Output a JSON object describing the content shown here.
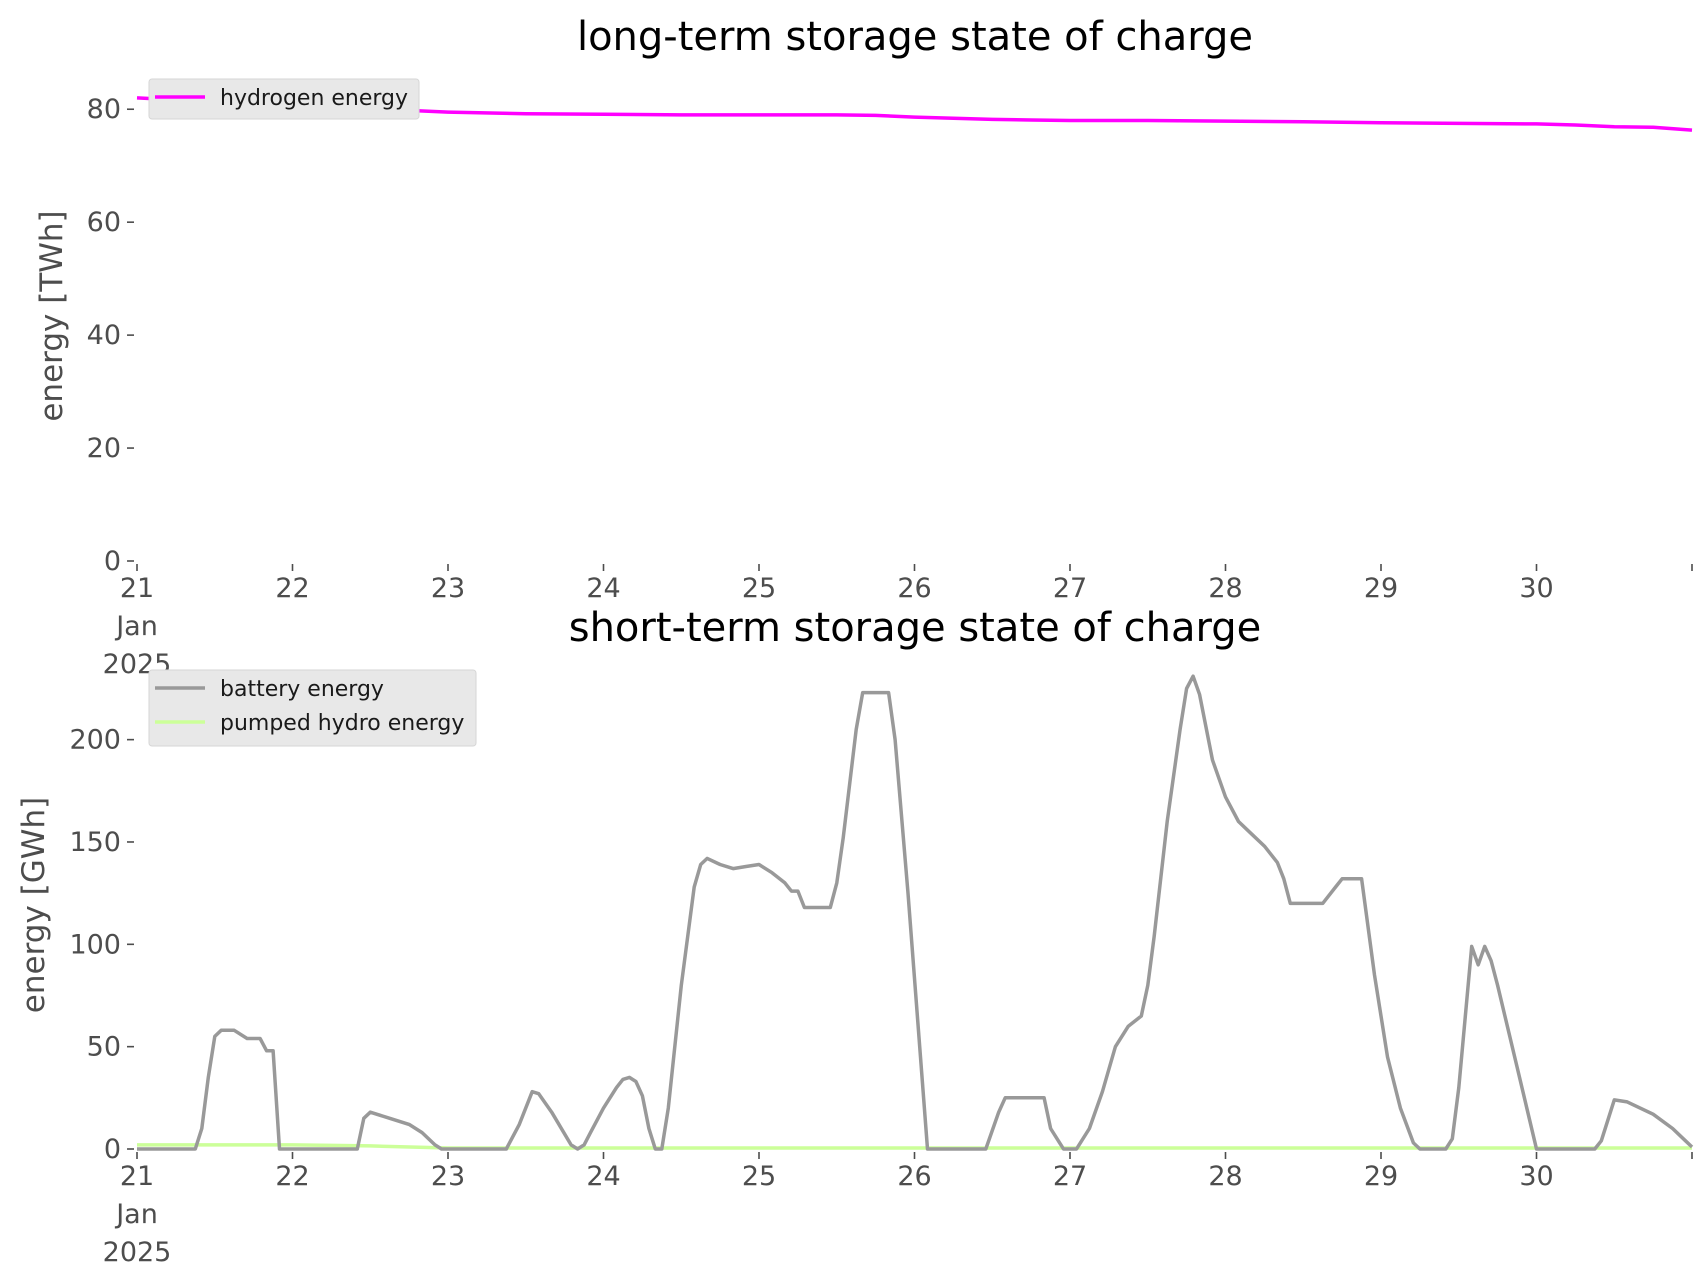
{
  "chart_data": [
    {
      "type": "line",
      "title": "long-term storage state of charge",
      "xlabel": "",
      "ylabel": "energy [TWh]",
      "x_tick_labels": [
        "21\nJan\n2025",
        "22",
        "23",
        "24",
        "25",
        "26",
        "27",
        "28",
        "29",
        "30"
      ],
      "x_range": [
        "2025-01-21 00:00",
        "2025-01-31 00:00"
      ],
      "ylim": [
        0,
        85
      ],
      "y_ticks": [
        0,
        20,
        40,
        60,
        80
      ],
      "grid": false,
      "legend_position": "upper-left",
      "series": [
        {
          "name": "hydrogen energy",
          "color": "#ff00ff",
          "points": [
            [
              "2025-01-21 00:00",
              82.0
            ],
            [
              "2025-01-21 12:00",
              81.3
            ],
            [
              "2025-01-22 00:00",
              80.7
            ],
            [
              "2025-01-22 12:00",
              80.1
            ],
            [
              "2025-01-23 00:00",
              79.5
            ],
            [
              "2025-01-23 12:00",
              79.2
            ],
            [
              "2025-01-24 00:00",
              79.1
            ],
            [
              "2025-01-24 12:00",
              79.0
            ],
            [
              "2025-01-25 00:00",
              79.0
            ],
            [
              "2025-01-25 12:00",
              79.0
            ],
            [
              "2025-01-25 18:00",
              78.9
            ],
            [
              "2025-01-26 00:00",
              78.6
            ],
            [
              "2025-01-26 12:00",
              78.2
            ],
            [
              "2025-01-26 18:00",
              78.1
            ],
            [
              "2025-01-27 00:00",
              78.0
            ],
            [
              "2025-01-27 12:00",
              78.0
            ],
            [
              "2025-01-28 00:00",
              77.9
            ],
            [
              "2025-01-28 12:00",
              77.8
            ],
            [
              "2025-01-29 00:00",
              77.6
            ],
            [
              "2025-01-29 12:00",
              77.5
            ],
            [
              "2025-01-30 00:00",
              77.4
            ],
            [
              "2025-01-30 06:00",
              77.2
            ],
            [
              "2025-01-30 12:00",
              76.9
            ],
            [
              "2025-01-30 18:00",
              76.8
            ],
            [
              "2025-01-31 00:00",
              76.3
            ]
          ]
        }
      ]
    },
    {
      "type": "line",
      "title": "short-term storage state of charge",
      "xlabel": "",
      "ylabel": "energy [GWh]",
      "x_tick_labels": [
        "21\nJan\n2025",
        "22",
        "23",
        "24",
        "25",
        "26",
        "27",
        "28",
        "29",
        "30"
      ],
      "x_range": [
        "2025-01-21 00:00",
        "2025-01-31 00:00"
      ],
      "ylim": [
        0,
        235
      ],
      "y_ticks": [
        0,
        50,
        100,
        150,
        200
      ],
      "grid": false,
      "legend_position": "upper-left",
      "series": [
        {
          "name": "battery energy",
          "color": "#999999",
          "points": [
            [
              "2025-01-21 00:00",
              0
            ],
            [
              "2025-01-21 09:00",
              0
            ],
            [
              "2025-01-21 10:00",
              10
            ],
            [
              "2025-01-21 11:00",
              35
            ],
            [
              "2025-01-21 12:00",
              55
            ],
            [
              "2025-01-21 13:00",
              58
            ],
            [
              "2025-01-21 15:00",
              58
            ],
            [
              "2025-01-21 17:00",
              54
            ],
            [
              "2025-01-21 19:00",
              54
            ],
            [
              "2025-01-21 20:00",
              48
            ],
            [
              "2025-01-21 21:00",
              48
            ],
            [
              "2025-01-21 22:00",
              0
            ],
            [
              "2025-01-22 10:00",
              0
            ],
            [
              "2025-01-22 11:00",
              15
            ],
            [
              "2025-01-22 12:00",
              18
            ],
            [
              "2025-01-22 15:00",
              15
            ],
            [
              "2025-01-22 18:00",
              12
            ],
            [
              "2025-01-22 20:00",
              8
            ],
            [
              "2025-01-22 22:00",
              2
            ],
            [
              "2025-01-22 23:00",
              0
            ],
            [
              "2025-01-23 09:00",
              0
            ],
            [
              "2025-01-23 11:00",
              12
            ],
            [
              "2025-01-23 13:00",
              28
            ],
            [
              "2025-01-23 14:00",
              27
            ],
            [
              "2025-01-23 16:00",
              18
            ],
            [
              "2025-01-23 19:00",
              2
            ],
            [
              "2025-01-23 20:00",
              0
            ],
            [
              "2025-01-23 21:00",
              2
            ],
            [
              "2025-01-23 22:00",
              8
            ],
            [
              "2025-01-24 00:00",
              20
            ],
            [
              "2025-01-24 02:00",
              30
            ],
            [
              "2025-01-24 03:00",
              34
            ],
            [
              "2025-01-24 04:00",
              35
            ],
            [
              "2025-01-24 05:00",
              33
            ],
            [
              "2025-01-24 06:00",
              26
            ],
            [
              "2025-01-24 07:00",
              10
            ],
            [
              "2025-01-24 08:00",
              0
            ],
            [
              "2025-01-24 09:00",
              0
            ],
            [
              "2025-01-24 10:00",
              20
            ],
            [
              "2025-01-24 12:00",
              80
            ],
            [
              "2025-01-24 14:00",
              128
            ],
            [
              "2025-01-24 15:00",
              139
            ],
            [
              "2025-01-24 16:00",
              142
            ],
            [
              "2025-01-24 18:00",
              139
            ],
            [
              "2025-01-24 20:00",
              137
            ],
            [
              "2025-01-24 22:00",
              138
            ],
            [
              "2025-01-25 00:00",
              139
            ],
            [
              "2025-01-25 02:00",
              135
            ],
            [
              "2025-01-25 04:00",
              130
            ],
            [
              "2025-01-25 05:00",
              126
            ],
            [
              "2025-01-25 06:00",
              126
            ],
            [
              "2025-01-25 07:00",
              118
            ],
            [
              "2025-01-25 11:00",
              118
            ],
            [
              "2025-01-25 12:00",
              130
            ],
            [
              "2025-01-25 13:00",
              152
            ],
            [
              "2025-01-25 15:00",
              205
            ],
            [
              "2025-01-25 16:00",
              223
            ],
            [
              "2025-01-25 18:00",
              223
            ],
            [
              "2025-01-25 20:00",
              223
            ],
            [
              "2025-01-25 21:00",
              200
            ],
            [
              "2025-01-25 23:00",
              125
            ],
            [
              "2025-01-26 02:00",
              0
            ],
            [
              "2025-01-26 11:00",
              0
            ],
            [
              "2025-01-26 13:00",
              18
            ],
            [
              "2025-01-26 14:00",
              25
            ],
            [
              "2025-01-26 20:00",
              25
            ],
            [
              "2025-01-26 21:00",
              10
            ],
            [
              "2025-01-26 23:00",
              0
            ],
            [
              "2025-01-27 01:00",
              0
            ],
            [
              "2025-01-27 03:00",
              10
            ],
            [
              "2025-01-27 05:00",
              28
            ],
            [
              "2025-01-27 07:00",
              50
            ],
            [
              "2025-01-27 09:00",
              60
            ],
            [
              "2025-01-27 11:00",
              65
            ],
            [
              "2025-01-27 12:00",
              80
            ],
            [
              "2025-01-27 13:00",
              104
            ],
            [
              "2025-01-27 15:00",
              160
            ],
            [
              "2025-01-27 17:00",
              205
            ],
            [
              "2025-01-27 18:00",
              225
            ],
            [
              "2025-01-27 19:00",
              231
            ],
            [
              "2025-01-27 20:00",
              222
            ],
            [
              "2025-01-27 22:00",
              190
            ],
            [
              "2025-01-28 00:00",
              172
            ],
            [
              "2025-01-28 02:00",
              160
            ],
            [
              "2025-01-28 04:00",
              154
            ],
            [
              "2025-01-28 06:00",
              148
            ],
            [
              "2025-01-28 08:00",
              140
            ],
            [
              "2025-01-28 09:00",
              132
            ],
            [
              "2025-01-28 10:00",
              120
            ],
            [
              "2025-01-28 11:00",
              120
            ],
            [
              "2025-01-28 15:00",
              120
            ],
            [
              "2025-01-28 17:00",
              128
            ],
            [
              "2025-01-28 18:00",
              132
            ],
            [
              "2025-01-28 20:00",
              132
            ],
            [
              "2025-01-28 21:00",
              132
            ],
            [
              "2025-01-28 23:00",
              85
            ],
            [
              "2025-01-29 01:00",
              45
            ],
            [
              "2025-01-29 03:00",
              20
            ],
            [
              "2025-01-29 05:00",
              3
            ],
            [
              "2025-01-29 06:00",
              0
            ],
            [
              "2025-01-29 09:00",
              0
            ],
            [
              "2025-01-29 10:00",
              0
            ],
            [
              "2025-01-29 11:00",
              5
            ],
            [
              "2025-01-29 12:00",
              30
            ],
            [
              "2025-01-29 14:00",
              99
            ],
            [
              "2025-01-29 15:00",
              90
            ],
            [
              "2025-01-29 16:00",
              99
            ],
            [
              "2025-01-29 17:00",
              92
            ],
            [
              "2025-01-29 18:00",
              80
            ],
            [
              "2025-01-29 21:00",
              40
            ],
            [
              "2025-01-30 00:00",
              0
            ],
            [
              "2025-01-30 09:00",
              0
            ],
            [
              "2025-01-30 10:00",
              4
            ],
            [
              "2025-01-30 12:00",
              24
            ],
            [
              "2025-01-30 14:00",
              23
            ],
            [
              "2025-01-30 18:00",
              17
            ],
            [
              "2025-01-30 21:00",
              10
            ],
            [
              "2025-01-30 23:00",
              4
            ],
            [
              "2025-01-31 00:00",
              1
            ]
          ]
        },
        {
          "name": "pumped hydro energy",
          "color": "#ccff99",
          "points": [
            [
              "2025-01-21 00:00",
              2.0
            ],
            [
              "2025-01-22 00:00",
              2.0
            ],
            [
              "2025-01-22 12:00",
              1.5
            ],
            [
              "2025-01-23 00:00",
              0.5
            ],
            [
              "2025-01-31 00:00",
              0.5
            ]
          ]
        }
      ]
    }
  ]
}
